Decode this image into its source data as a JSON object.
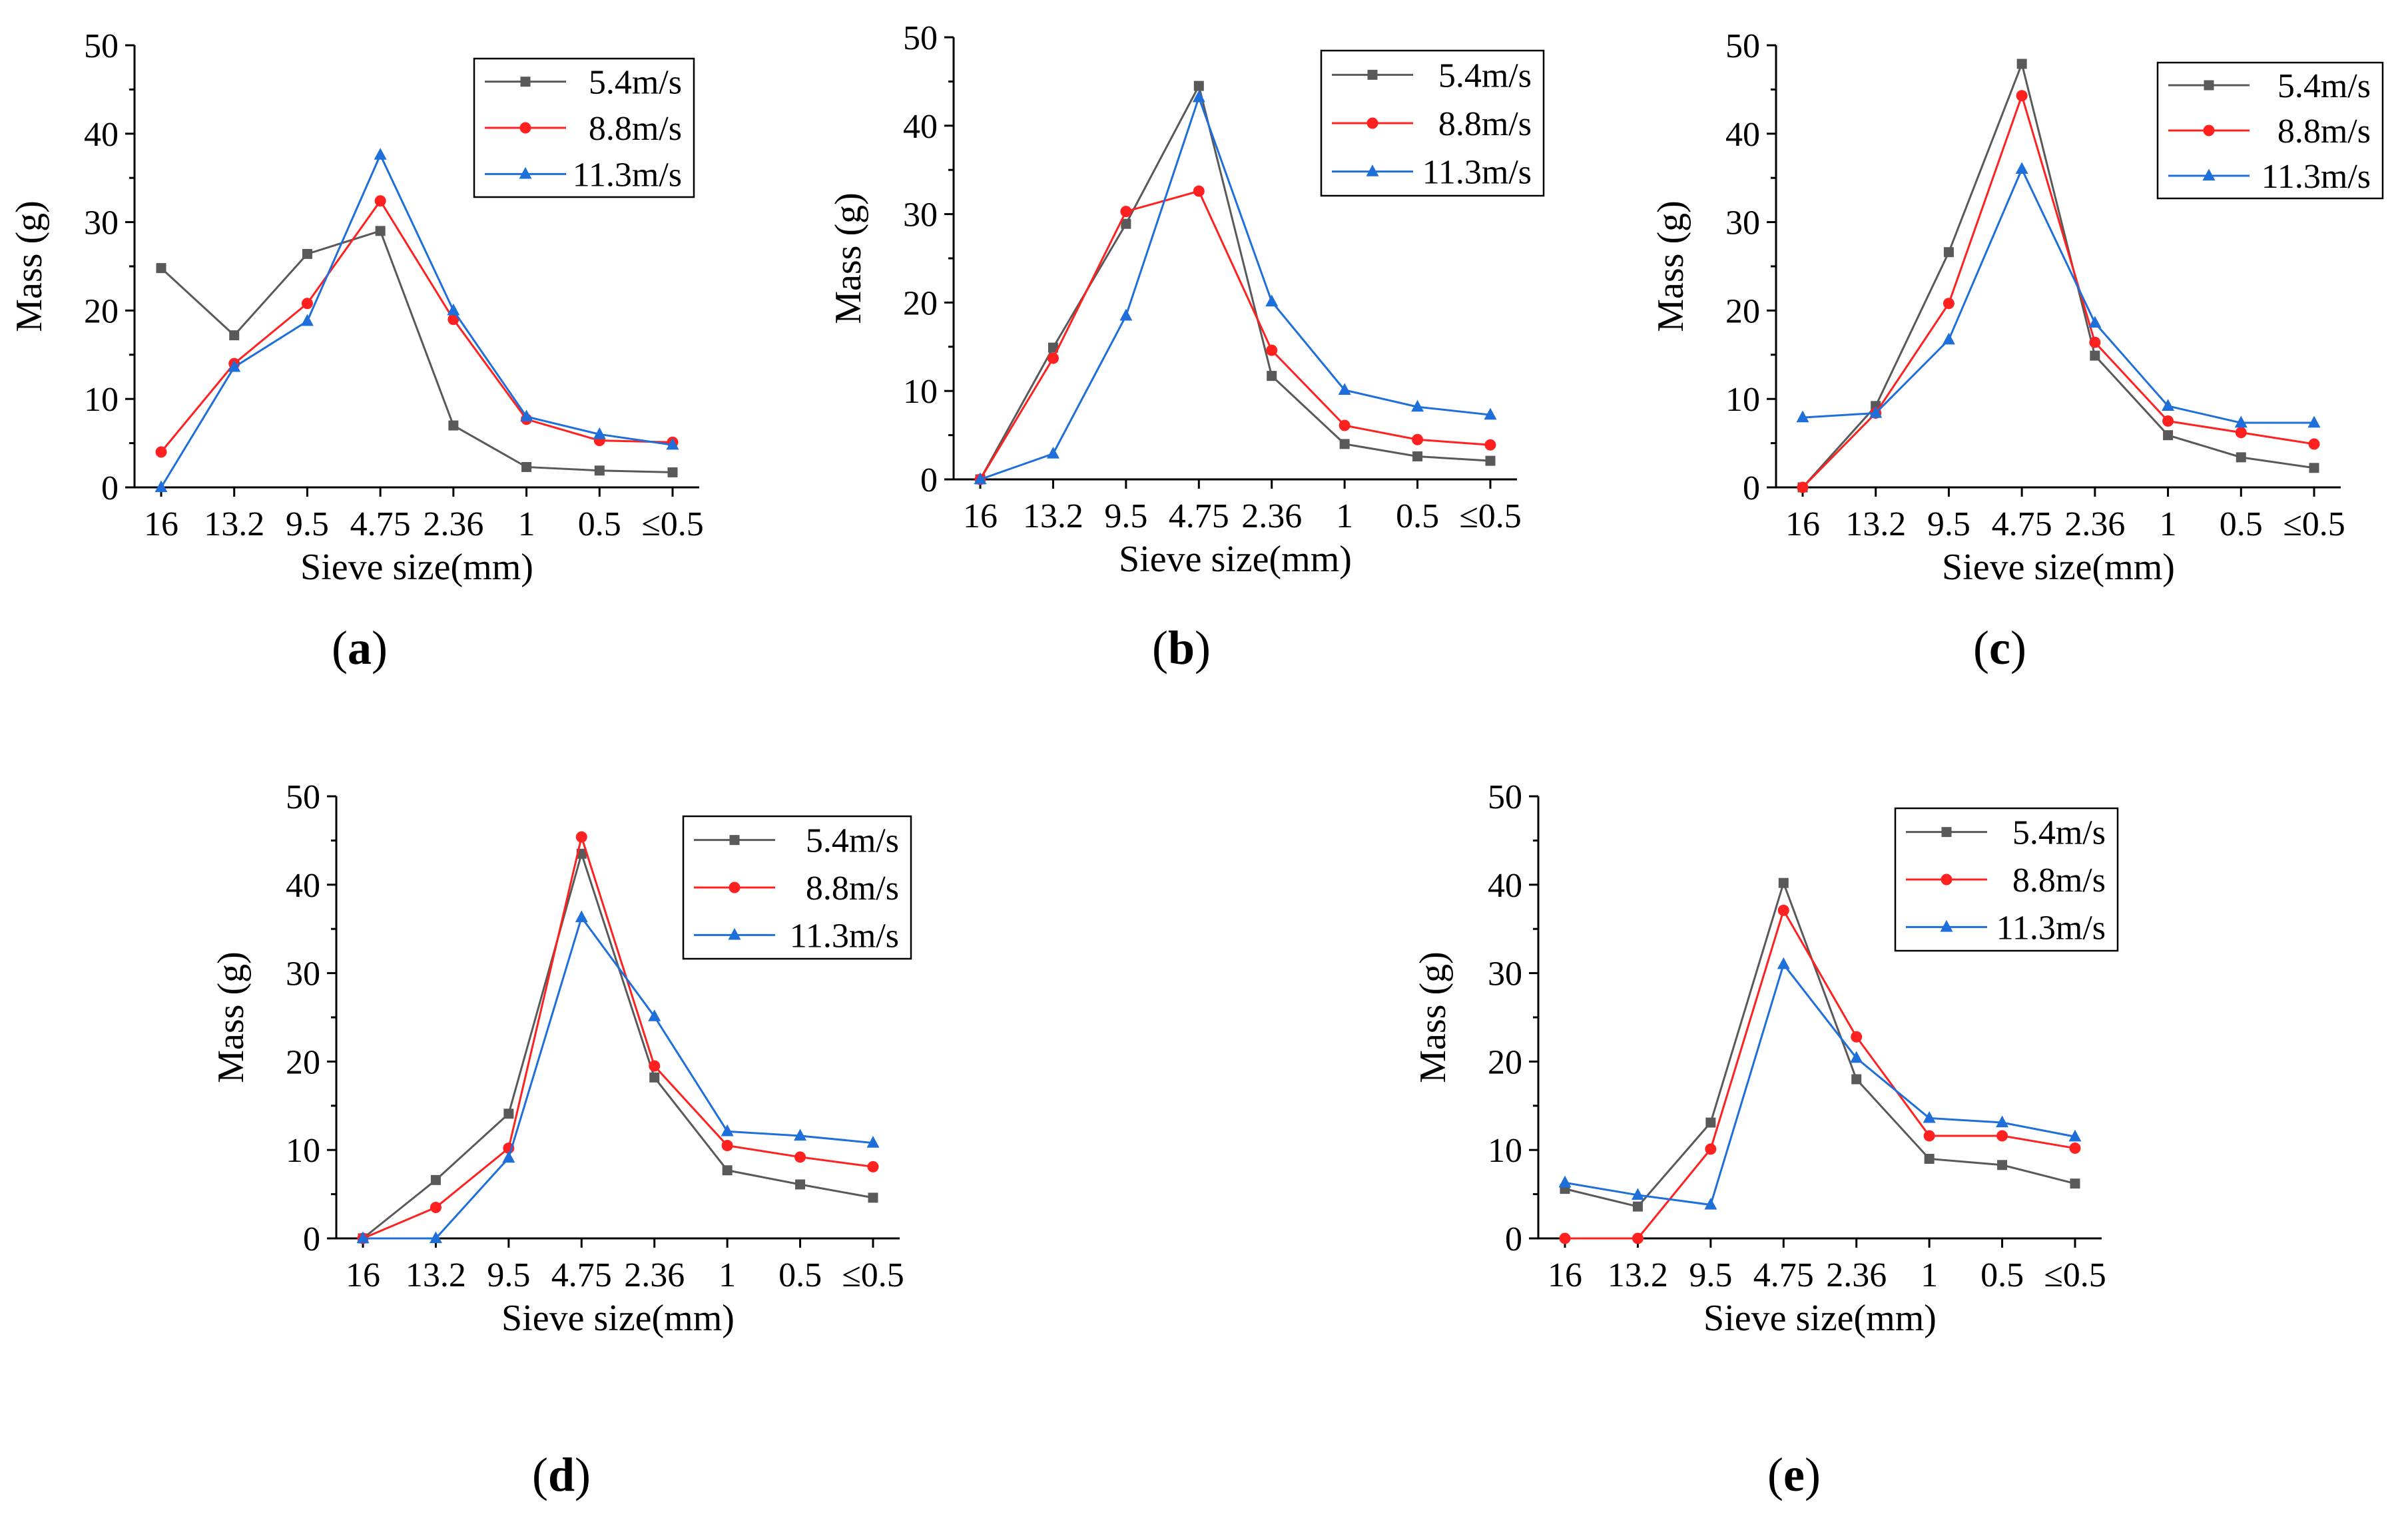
{
  "colors": {
    "s1": "#595959",
    "s2": "#ff2020",
    "s3": "#1e6fd9",
    "axis": "#000000"
  },
  "chart_data": [
    {
      "type": "line",
      "label": "a",
      "categories": [
        "16",
        "13.2",
        "9.5",
        "4.75",
        "2.36",
        "1",
        "0.5",
        "≤0.5"
      ],
      "xlabel": "Sieve size(mm)",
      "ylabel": "Mass (g)",
      "ylim": [
        0,
        50
      ],
      "yticks": [
        0,
        10,
        20,
        30,
        40,
        50
      ],
      "legend": "top-right",
      "grid": false,
      "series": [
        {
          "name": "5.4m/s",
          "marker": "square",
          "values": [
            24.8,
            17.2,
            26.4,
            29.0,
            7.0,
            2.3,
            1.9,
            1.7
          ]
        },
        {
          "name": "8.8m/s",
          "marker": "circle",
          "values": [
            4.0,
            14.0,
            20.8,
            32.4,
            19.0,
            7.7,
            5.3,
            5.1
          ]
        },
        {
          "name": "11.3m/s",
          "marker": "triangle",
          "values": [
            0.0,
            13.6,
            18.8,
            37.6,
            20.0,
            8.0,
            6.0,
            4.8
          ]
        }
      ]
    },
    {
      "type": "line",
      "label": "b",
      "categories": [
        "16",
        "13.2",
        "9.5",
        "4.75",
        "2.36",
        "1",
        "0.5",
        "≤0.5"
      ],
      "xlabel": "Sieve size(mm)",
      "ylabel": "Mass (g)",
      "ylim": [
        0,
        50
      ],
      "yticks": [
        0,
        10,
        20,
        30,
        40,
        50
      ],
      "legend": "top-right",
      "grid": false,
      "series": [
        {
          "name": "5.4m/s",
          "marker": "square",
          "values": [
            0.0,
            14.9,
            28.9,
            44.5,
            11.7,
            4.0,
            2.6,
            2.1
          ]
        },
        {
          "name": "8.8m/s",
          "marker": "circle",
          "values": [
            0.0,
            13.7,
            30.3,
            32.6,
            14.6,
            6.1,
            4.5,
            3.9
          ]
        },
        {
          "name": "11.3m/s",
          "marker": "triangle",
          "values": [
            0.0,
            2.9,
            18.5,
            43.2,
            20.1,
            10.1,
            8.2,
            7.3
          ]
        }
      ]
    },
    {
      "type": "line",
      "label": "c",
      "categories": [
        "16",
        "13.2",
        "9.5",
        "4.75",
        "2.36",
        "1",
        "0.5",
        "≤0.5"
      ],
      "xlabel": "Sieve size(mm)",
      "ylabel": "Mass (g)",
      "ylim": [
        0,
        50
      ],
      "yticks": [
        0,
        10,
        20,
        30,
        40,
        50
      ],
      "legend": "top-right",
      "grid": false,
      "series": [
        {
          "name": "5.4m/s",
          "marker": "square",
          "values": [
            0.0,
            9.2,
            26.6,
            47.9,
            14.9,
            5.9,
            3.4,
            2.2
          ]
        },
        {
          "name": "8.8m/s",
          "marker": "circle",
          "values": [
            0.0,
            8.4,
            20.8,
            44.3,
            16.4,
            7.5,
            6.2,
            4.9
          ]
        },
        {
          "name": "11.3m/s",
          "marker": "triangle",
          "values": [
            7.9,
            8.4,
            16.7,
            36.0,
            18.6,
            9.2,
            7.3,
            7.3
          ]
        }
      ]
    },
    {
      "type": "line",
      "label": "d",
      "categories": [
        "16",
        "13.2",
        "9.5",
        "4.75",
        "2.36",
        "1",
        "0.5",
        "≤0.5"
      ],
      "xlabel": "Sieve size(mm)",
      "ylabel": "Mass (g)",
      "ylim": [
        0,
        50
      ],
      "yticks": [
        0,
        10,
        20,
        30,
        40,
        50
      ],
      "legend": "top-right",
      "grid": false,
      "series": [
        {
          "name": "5.4m/s",
          "marker": "square",
          "values": [
            0.0,
            6.6,
            14.1,
            43.5,
            18.2,
            7.7,
            6.1,
            4.6
          ]
        },
        {
          "name": "8.8m/s",
          "marker": "circle",
          "values": [
            0.0,
            3.5,
            10.2,
            45.4,
            19.5,
            10.5,
            9.2,
            8.1
          ]
        },
        {
          "name": "11.3m/s",
          "marker": "triangle",
          "values": [
            0.0,
            0.0,
            9.1,
            36.3,
            25.1,
            12.1,
            11.6,
            10.8
          ]
        }
      ]
    },
    {
      "type": "line",
      "label": "e",
      "categories": [
        "16",
        "13.2",
        "9.5",
        "4.75",
        "2.36",
        "1",
        "0.5",
        "≤0.5"
      ],
      "xlabel": "Sieve size(mm)",
      "ylabel": "Mass (g)",
      "ylim": [
        0,
        50
      ],
      "yticks": [
        0,
        10,
        20,
        30,
        40,
        50
      ],
      "legend": "top-right",
      "grid": false,
      "series": [
        {
          "name": "5.4m/s",
          "marker": "square",
          "values": [
            5.6,
            3.6,
            13.1,
            40.2,
            18.0,
            9.0,
            8.3,
            6.2
          ]
        },
        {
          "name": "8.8m/s",
          "marker": "circle",
          "values": [
            0.0,
            0.0,
            10.1,
            37.1,
            22.8,
            11.6,
            11.6,
            10.2
          ]
        },
        {
          "name": "11.3m/s",
          "marker": "triangle",
          "values": [
            6.3,
            4.9,
            3.8,
            31.0,
            20.4,
            13.6,
            13.1,
            11.5
          ]
        }
      ]
    }
  ]
}
